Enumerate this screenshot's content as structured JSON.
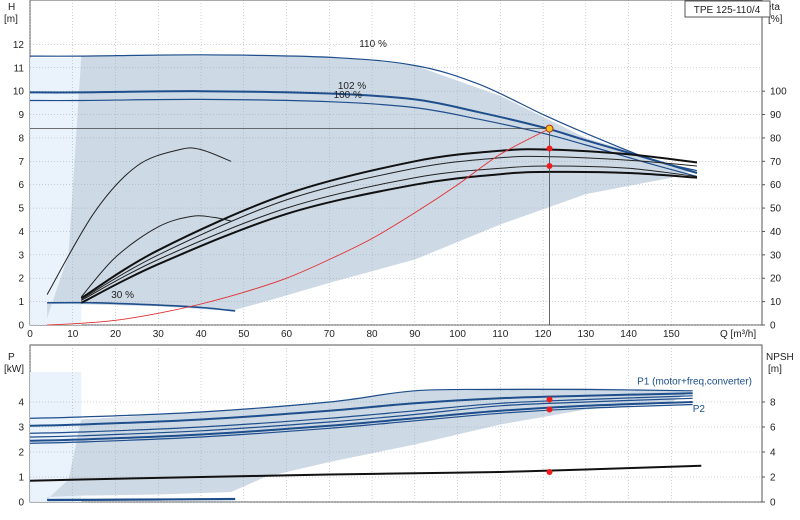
{
  "title_box": "TPE 125-110/4",
  "chart_data": [
    {
      "type": "line",
      "xlabel": "Q [m³/h]",
      "ylabel_left": [
        "H",
        "[m]"
      ],
      "ylabel_right": [
        "eta",
        "[%]"
      ],
      "xlim": [
        0,
        160
      ],
      "ylim_left": [
        0,
        13
      ],
      "ylim_right": [
        0,
        130
      ],
      "x_ticks": [
        0,
        10,
        20,
        30,
        40,
        50,
        60,
        70,
        80,
        90,
        100,
        110,
        120,
        130,
        140,
        150
      ],
      "y_ticks_left": [
        0,
        1,
        2,
        3,
        4,
        5,
        6,
        7,
        8,
        9,
        10,
        11,
        12
      ],
      "y_ticks_right": [
        0,
        10,
        20,
        30,
        40,
        50,
        60,
        70,
        80,
        90,
        100
      ],
      "operating_region": [
        [
          4,
          0.3
        ],
        [
          9,
          3
        ],
        [
          12,
          11.5
        ],
        [
          70,
          11.5
        ],
        [
          90,
          11.1
        ],
        [
          110,
          9.8
        ],
        [
          130,
          8
        ],
        [
          155,
          6.6
        ],
        [
          150,
          6.3
        ],
        [
          130,
          5.6
        ],
        [
          110,
          4.3
        ],
        [
          90,
          2.8
        ],
        [
          70,
          1.8
        ],
        [
          55,
          1
        ],
        [
          47,
          0.6
        ],
        [
          30,
          0.8
        ],
        [
          10,
          0.9
        ],
        [
          4,
          0.9
        ]
      ],
      "duty_point": {
        "Q": 121.5,
        "H": 8.4
      },
      "annotations": [
        {
          "text": "110 %",
          "Q": 77,
          "H": 11.9
        },
        {
          "text": "102 %",
          "Q": 72,
          "H": 10.1
        },
        {
          "text": "100 %",
          "Q": 71,
          "H": 9.7
        },
        {
          "text": "30 %",
          "Q": 19,
          "H": 1.15
        }
      ],
      "series": [
        {
          "name": "110 %",
          "x": [
            0,
            12,
            40,
            70,
            90,
            105,
            120,
            130,
            145,
            156
          ],
          "y": [
            11.5,
            11.5,
            11.55,
            11.45,
            11.1,
            10.3,
            9.0,
            8.2,
            7.1,
            6.6
          ]
        },
        {
          "name": "102 %",
          "x": [
            0,
            12,
            40,
            70,
            90,
            105,
            120,
            130,
            145,
            156
          ],
          "y": [
            9.95,
            9.95,
            10.0,
            9.9,
            9.65,
            9.1,
            8.45,
            7.9,
            7.1,
            6.5
          ]
        },
        {
          "name": "100 %",
          "x": [
            0,
            12,
            40,
            70,
            90,
            105,
            120,
            130,
            145,
            156
          ],
          "y": [
            9.6,
            9.6,
            9.65,
            9.55,
            9.3,
            8.8,
            8.2,
            7.7,
            6.9,
            6.35
          ]
        },
        {
          "x": [
            4,
            15,
            30,
            40,
            48
          ],
          "y": [
            0.95,
            0.95,
            0.85,
            0.75,
            0.6
          ]
        },
        {
          "x": [
            12,
            30,
            60,
            90,
            110,
            122,
            140,
            156
          ],
          "y": [
            1.15,
            3.2,
            5.6,
            7.0,
            7.45,
            7.5,
            7.3,
            6.95
          ]
        },
        {
          "x": [
            12,
            30,
            60,
            90,
            110,
            122,
            140,
            156
          ],
          "y": [
            1.1,
            3.0,
            5.35,
            6.7,
            7.15,
            7.2,
            7.05,
            6.8
          ]
        },
        {
          "x": [
            12,
            30,
            60,
            90,
            110,
            122,
            140,
            156
          ],
          "y": [
            1.05,
            2.8,
            5.0,
            6.3,
            6.7,
            6.8,
            6.7,
            6.35
          ]
        },
        {
          "x": [
            12,
            30,
            60,
            90,
            110,
            122,
            140,
            156
          ],
          "y": [
            0.95,
            2.6,
            4.75,
            6.0,
            6.45,
            6.55,
            6.5,
            6.3
          ]
        },
        {
          "x": [
            4,
            15,
            25,
            35,
            40,
            47
          ],
          "y": [
            1.3,
            4.8,
            6.8,
            7.5,
            7.5,
            7.0
          ]
        },
        {
          "x": [
            12,
            20,
            30,
            38,
            43,
            47
          ],
          "y": [
            1.2,
            2.9,
            4.2,
            4.65,
            4.6,
            4.45
          ]
        },
        {
          "x": [
            4,
            10,
            20,
            30,
            40,
            50,
            60,
            70,
            80,
            90,
            100,
            110,
            121.5
          ],
          "y": [
            0,
            0.05,
            0.2,
            0.5,
            0.9,
            1.4,
            2.0,
            2.8,
            3.7,
            4.8,
            6.0,
            7.3,
            8.4
          ]
        }
      ],
      "markers": [
        {
          "Q": 121.5,
          "H": 7.55
        },
        {
          "Q": 121.5,
          "H": 6.8
        }
      ]
    },
    {
      "type": "line",
      "ylabel_left": [
        "P",
        "[kW]"
      ],
      "ylabel_right": [
        "NPSH",
        "[m]"
      ],
      "xlim": [
        0,
        160
      ],
      "ylim_left": [
        0,
        5
      ],
      "ylim_right": [
        0,
        10
      ],
      "y_ticks_left": [
        0,
        1,
        2,
        3,
        4
      ],
      "y_ticks_right": [
        0,
        2,
        4,
        6,
        8
      ],
      "operating_region": [
        [
          4,
          0.1
        ],
        [
          9,
          0.9
        ],
        [
          12,
          3.3
        ],
        [
          40,
          3.6
        ],
        [
          70,
          4.0
        ],
        [
          90,
          4.45
        ],
        [
          110,
          4.55
        ],
        [
          130,
          4.55
        ],
        [
          155,
          4.45
        ],
        [
          150,
          4.0
        ],
        [
          130,
          3.7
        ],
        [
          110,
          3.1
        ],
        [
          90,
          2.3
        ],
        [
          70,
          1.6
        ],
        [
          55,
          1.0
        ],
        [
          47,
          0.4
        ],
        [
          30,
          0.3
        ],
        [
          10,
          0.25
        ],
        [
          4,
          0.2
        ]
      ],
      "annotations": [
        {
          "text": "P1 (motor+freq.converter)",
          "Q": 142,
          "H": 4.7
        },
        {
          "text": "P2",
          "Q": 155,
          "H": 3.6
        }
      ],
      "series": [
        {
          "name": "P1 (motor+freq.converter)",
          "x": [
            0,
            12,
            40,
            70,
            90,
            110,
            130,
            155
          ],
          "y": [
            3.35,
            3.4,
            3.6,
            4.0,
            4.45,
            4.5,
            4.5,
            4.45
          ]
        },
        {
          "x": [
            0,
            12,
            40,
            70,
            90,
            110,
            130,
            155
          ],
          "y": [
            3.05,
            3.1,
            3.3,
            3.65,
            3.95,
            4.15,
            4.25,
            4.35
          ]
        },
        {
          "x": [
            0,
            12,
            40,
            70,
            90,
            110,
            130,
            155
          ],
          "y": [
            2.75,
            2.8,
            3.0,
            3.35,
            3.65,
            3.95,
            4.1,
            4.25
          ]
        },
        {
          "x": [
            0,
            12,
            40,
            70,
            90,
            110,
            130,
            155
          ],
          "y": [
            2.6,
            2.65,
            2.85,
            3.2,
            3.5,
            3.85,
            4.0,
            4.15
          ]
        },
        {
          "name": "P2",
          "x": [
            0,
            12,
            40,
            70,
            90,
            110,
            130,
            155
          ],
          "y": [
            2.45,
            2.5,
            2.7,
            3.05,
            3.35,
            3.65,
            3.85,
            4.0
          ]
        },
        {
          "x": [
            0,
            12,
            40,
            70,
            90,
            110,
            130,
            155
          ],
          "y": [
            2.35,
            2.4,
            2.6,
            2.95,
            3.25,
            3.55,
            3.75,
            3.9
          ]
        },
        {
          "x": [
            4,
            30,
            48
          ],
          "y": [
            0.08,
            0.1,
            0.12
          ]
        },
        {
          "name": "NPSH",
          "x": [
            0,
            12,
            40,
            70,
            90,
            110,
            130,
            157
          ],
          "y": [
            0.85,
            0.9,
            1.0,
            1.1,
            1.15,
            1.2,
            1.3,
            1.45
          ]
        }
      ],
      "markers": [
        {
          "Q": 121.5,
          "H": 4.1
        },
        {
          "Q": 121.5,
          "H": 3.7
        },
        {
          "Q": 121.5,
          "H": 1.2
        }
      ]
    }
  ]
}
